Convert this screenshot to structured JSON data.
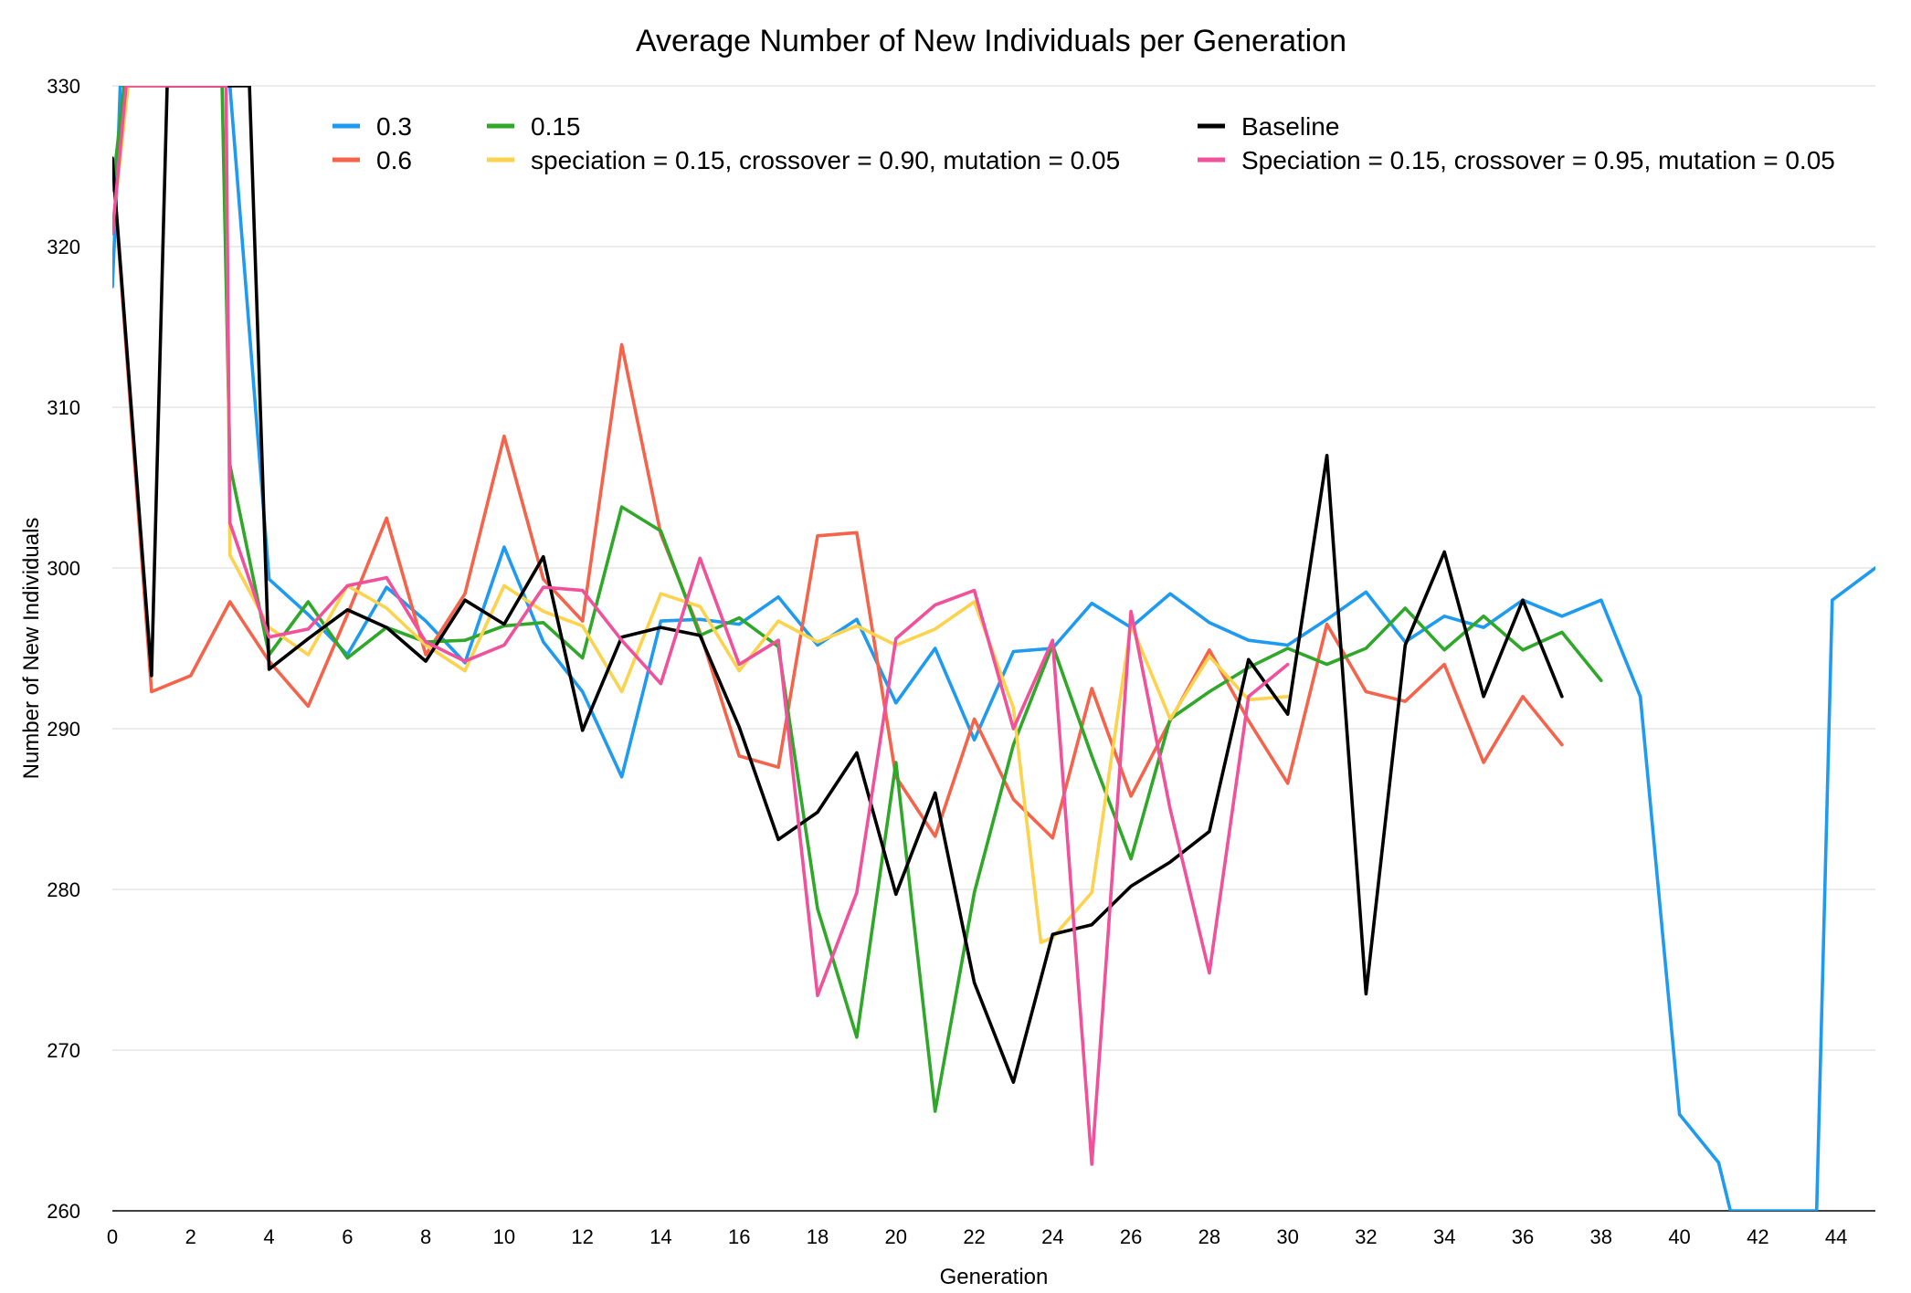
{
  "chart_data": {
    "type": "line",
    "title": "Average Number of New Individuals per Generation",
    "xlabel": "Generation",
    "ylabel": "Number of New Individuals",
    "xlim": [
      0,
      45
    ],
    "ylim": [
      260,
      330
    ],
    "xticks": [
      "0",
      "2",
      "4",
      "6",
      "8",
      "10",
      "12",
      "14",
      "16",
      "18",
      "20",
      "22",
      "24",
      "26",
      "28",
      "30",
      "32",
      "34",
      "36",
      "38",
      "40",
      "42",
      "44"
    ],
    "yticks": [
      "260",
      "270",
      "280",
      "290",
      "300",
      "310",
      "320",
      "330"
    ],
    "grid": true,
    "legend_position": "top",
    "series": [
      {
        "name": "0.3",
        "color": "#1e9bf0",
        "points": [
          [
            0,
            317.5
          ],
          [
            0.1,
            323
          ],
          [
            0.2,
            330
          ],
          [
            3,
            330
          ],
          [
            4,
            299.3
          ],
          [
            5,
            297.1
          ],
          [
            6,
            294.6
          ],
          [
            7,
            298.8
          ],
          [
            8,
            296.7
          ],
          [
            9,
            294.1
          ],
          [
            10,
            301.3
          ],
          [
            11,
            295.4
          ],
          [
            12,
            292.3
          ],
          [
            13,
            287
          ],
          [
            14,
            296.7
          ],
          [
            15,
            296.8
          ],
          [
            16,
            296.5
          ],
          [
            17,
            298.2
          ],
          [
            18,
            295.2
          ],
          [
            19,
            296.8
          ],
          [
            20,
            291.6
          ],
          [
            21,
            295
          ],
          [
            22,
            289.3
          ],
          [
            23,
            294.8
          ],
          [
            24,
            295
          ],
          [
            25,
            297.8
          ],
          [
            26,
            296.3
          ],
          [
            27,
            298.4
          ],
          [
            28,
            296.6
          ],
          [
            29,
            295.5
          ],
          [
            30,
            295.2
          ],
          [
            31,
            296.8
          ],
          [
            32,
            298.5
          ],
          [
            33,
            295.4
          ],
          [
            34,
            297
          ],
          [
            35,
            296.3
          ],
          [
            36,
            298
          ],
          [
            37,
            297
          ],
          [
            38,
            298
          ],
          [
            39,
            292
          ],
          [
            40,
            266
          ],
          [
            41,
            263
          ],
          [
            41.3,
            260
          ],
          [
            43.5,
            260
          ],
          [
            43.9,
            298
          ],
          [
            45,
            300
          ]
        ]
      },
      {
        "name": "0.6",
        "color": "#f5634a",
        "points": [
          [
            0,
            325.3
          ],
          [
            1,
            292.3
          ],
          [
            2,
            293.3
          ],
          [
            3,
            297.9
          ],
          [
            4,
            294.2
          ],
          [
            5,
            291.4
          ],
          [
            6,
            297.1
          ],
          [
            7,
            303.1
          ],
          [
            8,
            294.6
          ],
          [
            9,
            298.4
          ],
          [
            10,
            308.2
          ],
          [
            11,
            299.3
          ],
          [
            12,
            296.7
          ],
          [
            13,
            313.9
          ],
          [
            14,
            302.1
          ],
          [
            15,
            296
          ],
          [
            16,
            288.3
          ],
          [
            17,
            287.6
          ],
          [
            18,
            302
          ],
          [
            19,
            302.2
          ],
          [
            20,
            287
          ],
          [
            21,
            283.3
          ],
          [
            22,
            290.6
          ],
          [
            23,
            285.6
          ],
          [
            24,
            283.2
          ],
          [
            25,
            292.5
          ],
          [
            26,
            285.8
          ],
          [
            27,
            290.5
          ],
          [
            28,
            294.9
          ],
          [
            29,
            290.5
          ],
          [
            30,
            286.6
          ],
          [
            31,
            296.5
          ],
          [
            32,
            292.3
          ],
          [
            33,
            291.7
          ],
          [
            34,
            294
          ],
          [
            35,
            287.9
          ],
          [
            36,
            292
          ],
          [
            37,
            289
          ]
        ]
      },
      {
        "name": "0.15",
        "color": "#2fa82a",
        "points": [
          [
            0,
            323.5
          ],
          [
            0.3,
            330
          ],
          [
            2.8,
            330
          ],
          [
            3,
            306.4
          ],
          [
            4,
            294.6
          ],
          [
            5,
            297.9
          ],
          [
            6,
            294.4
          ],
          [
            7,
            296.3
          ],
          [
            8,
            295.4
          ],
          [
            9,
            295.5
          ],
          [
            10,
            296.4
          ],
          [
            11,
            296.6
          ],
          [
            12,
            294.4
          ],
          [
            13,
            303.8
          ],
          [
            14,
            302.3
          ],
          [
            15,
            295.8
          ],
          [
            16,
            296.9
          ],
          [
            17,
            295.1
          ],
          [
            18,
            278.8
          ],
          [
            19,
            270.8
          ],
          [
            20,
            287.9
          ],
          [
            21,
            266.2
          ],
          [
            22,
            279.8
          ],
          [
            23,
            289
          ],
          [
            24,
            295.2
          ],
          [
            25,
            288.3
          ],
          [
            26,
            281.9
          ],
          [
            27,
            290.6
          ],
          [
            28,
            292.3
          ],
          [
            29,
            293.8
          ],
          [
            30,
            295
          ],
          [
            31,
            294
          ],
          [
            32,
            295
          ],
          [
            33,
            297.5
          ],
          [
            34,
            294.9
          ],
          [
            35,
            297
          ],
          [
            36,
            294.9
          ],
          [
            37,
            296
          ],
          [
            38,
            293
          ]
        ]
      },
      {
        "name": "speciation = 0.15, crossover = 0.90, mutation = 0.05",
        "color": "#fdd24c",
        "points": [
          [
            0,
            321
          ],
          [
            0.4,
            330
          ],
          [
            2.9,
            330
          ],
          [
            3,
            300.8
          ],
          [
            4,
            296.3
          ],
          [
            5,
            294.6
          ],
          [
            6,
            298.9
          ],
          [
            7,
            297.5
          ],
          [
            8,
            295.2
          ],
          [
            9,
            293.6
          ],
          [
            10,
            298.9
          ],
          [
            11,
            297.3
          ],
          [
            12,
            296.4
          ],
          [
            13,
            292.3
          ],
          [
            14,
            298.4
          ],
          [
            15,
            297.6
          ],
          [
            16,
            293.6
          ],
          [
            17,
            296.7
          ],
          [
            18,
            295.4
          ],
          [
            19,
            296.4
          ],
          [
            20,
            295.2
          ],
          [
            21,
            296.2
          ],
          [
            22,
            297.9
          ],
          [
            23,
            291.3
          ],
          [
            23.7,
            276.7
          ],
          [
            24,
            277
          ],
          [
            25,
            279.8
          ],
          [
            26,
            296.5
          ],
          [
            27,
            290.6
          ],
          [
            28,
            294.5
          ],
          [
            29,
            291.8
          ],
          [
            30,
            292
          ]
        ]
      },
      {
        "name": "Baseline",
        "color": "#000000",
        "points": [
          [
            0,
            325.5
          ],
          [
            1,
            293.3
          ],
          [
            1.4,
            330
          ],
          [
            3.5,
            330
          ],
          [
            4,
            293.7
          ],
          [
            5,
            295.6
          ],
          [
            6,
            297.4
          ],
          [
            7,
            296.3
          ],
          [
            8,
            294.2
          ],
          [
            9,
            298
          ],
          [
            10,
            296.5
          ],
          [
            11,
            300.7
          ],
          [
            12,
            289.9
          ],
          [
            13,
            295.7
          ],
          [
            14,
            296.3
          ],
          [
            15,
            295.8
          ],
          [
            16,
            290.1
          ],
          [
            17,
            283.1
          ],
          [
            18,
            284.8
          ],
          [
            19,
            288.5
          ],
          [
            20,
            279.7
          ],
          [
            21,
            286
          ],
          [
            22,
            274.2
          ],
          [
            23,
            268
          ],
          [
            24,
            277.2
          ],
          [
            25,
            277.8
          ],
          [
            26,
            280.2
          ],
          [
            27,
            281.7
          ],
          [
            28,
            283.6
          ],
          [
            29,
            294.3
          ],
          [
            30,
            290.9
          ],
          [
            31,
            307
          ],
          [
            32,
            273.5
          ],
          [
            33,
            295.2
          ],
          [
            34,
            301
          ],
          [
            35,
            292
          ],
          [
            36,
            298
          ],
          [
            37,
            292
          ]
        ]
      },
      {
        "name": "Speciation = 0.15, crossover = 0.95, mutation = 0.05",
        "color": "#f0519a",
        "points": [
          [
            0,
            320.8
          ],
          [
            0.35,
            330
          ],
          [
            2.9,
            330
          ],
          [
            3,
            302.8
          ],
          [
            4,
            295.7
          ],
          [
            5,
            296.2
          ],
          [
            6,
            298.9
          ],
          [
            7,
            299.4
          ],
          [
            8,
            295.4
          ],
          [
            9,
            294.2
          ],
          [
            10,
            295.2
          ],
          [
            11,
            298.8
          ],
          [
            12,
            298.6
          ],
          [
            13,
            295.5
          ],
          [
            14,
            292.8
          ],
          [
            15,
            300.6
          ],
          [
            16,
            294
          ],
          [
            17,
            295.5
          ],
          [
            18,
            273.4
          ],
          [
            19,
            279.8
          ],
          [
            20,
            295.6
          ],
          [
            21,
            297.7
          ],
          [
            22,
            298.6
          ],
          [
            23,
            290
          ],
          [
            24,
            295.5
          ],
          [
            25,
            262.9
          ],
          [
            26,
            297.3
          ],
          [
            27,
            285
          ],
          [
            28,
            274.8
          ],
          [
            29,
            292
          ],
          [
            30,
            294
          ]
        ]
      }
    ]
  }
}
